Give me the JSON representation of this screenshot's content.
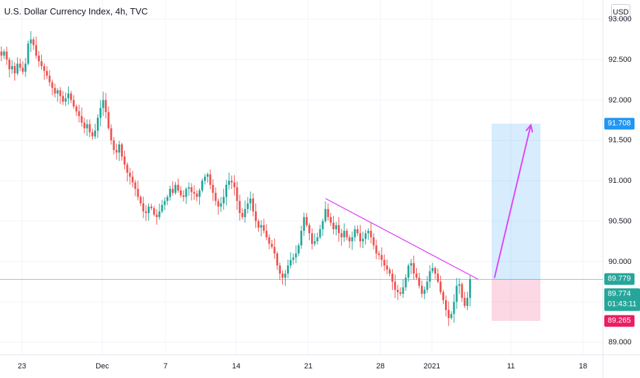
{
  "header": {
    "title": "U.S. Dollar Currency Index, 4h, TVC"
  },
  "controls": {
    "currency": "USD"
  },
  "price_labels": {
    "target": {
      "text": "91.708",
      "color": "#2196f3"
    },
    "level": {
      "text": "89.779",
      "color": "#26a69a"
    },
    "last": {
      "text": "89.774",
      "countdown": "01:43:11",
      "color": "#26a69a"
    },
    "stop": {
      "text": "89.265",
      "color": "#e91e63"
    }
  },
  "chart_data": {
    "type": "candlestick",
    "title": "U.S. Dollar Currency Index, 4h, TVC",
    "y_ticks": [
      "93.000",
      "92.500",
      "92.000",
      "91.500",
      "91.000",
      "90.500",
      "90.000",
      "89.500",
      "89.000"
    ],
    "x_ticks": [
      "23",
      "Dec",
      "7",
      "14",
      "21",
      "28",
      "2021",
      "11",
      "18"
    ],
    "ylim": [
      88.87,
      93.1
    ],
    "series_close": [
      92.55,
      92.6,
      92.5,
      92.38,
      92.42,
      92.33,
      92.45,
      92.4,
      92.35,
      92.45,
      92.7,
      92.75,
      92.68,
      92.55,
      92.48,
      92.42,
      92.36,
      92.3,
      92.22,
      92.15,
      92.08,
      92.12,
      92.05,
      91.98,
      92.02,
      92.08,
      92.0,
      91.92,
      91.86,
      91.8,
      91.72,
      91.65,
      91.7,
      91.6,
      91.55,
      91.62,
      91.78,
      91.9,
      92.0,
      91.85,
      91.65,
      91.5,
      91.38,
      91.35,
      91.45,
      91.3,
      91.2,
      91.1,
      91.05,
      90.98,
      90.9,
      90.8,
      90.72,
      90.62,
      90.6,
      90.68,
      90.66,
      90.58,
      90.55,
      90.62,
      90.7,
      90.75,
      90.8,
      90.9,
      90.85,
      90.95,
      90.88,
      90.82,
      90.8,
      90.9,
      90.92,
      90.86,
      90.84,
      90.8,
      90.88,
      91.0,
      91.05,
      91.08,
      90.95,
      90.85,
      90.75,
      90.68,
      90.72,
      90.8,
      90.95,
      91.0,
      90.98,
      90.92,
      90.75,
      90.6,
      90.55,
      90.65,
      90.72,
      90.78,
      90.62,
      90.5,
      90.42,
      90.45,
      90.38,
      90.3,
      90.22,
      90.18,
      90.1,
      89.95,
      89.85,
      89.8,
      89.85,
      89.95,
      90.02,
      90.05,
      90.1,
      90.2,
      90.38,
      90.55,
      90.45,
      90.35,
      90.22,
      90.25,
      90.3,
      90.4,
      90.5,
      90.65,
      90.55,
      90.48,
      90.4,
      90.45,
      90.35,
      90.3,
      90.38,
      90.3,
      90.25,
      90.3,
      90.4,
      90.35,
      90.25,
      90.28,
      90.35,
      90.38,
      90.3,
      90.2,
      90.1,
      90.08,
      90.02,
      89.95,
      89.9,
      89.85,
      89.75,
      89.65,
      89.62,
      89.6,
      89.68,
      89.8,
      89.95,
      89.98,
      89.85,
      89.8,
      89.7,
      89.6,
      89.65,
      89.75,
      89.88,
      89.92,
      89.85,
      89.75,
      89.62,
      89.52,
      89.4,
      89.3,
      89.35,
      89.5,
      89.7,
      89.72,
      89.55,
      89.45,
      89.55,
      89.78
    ],
    "trendline": {
      "from_index": 121,
      "from_value": 90.78,
      "to_index": 178,
      "to_value": 89.78
    },
    "position": {
      "entry": 89.779,
      "target": 91.708,
      "stop": 89.265
    }
  }
}
